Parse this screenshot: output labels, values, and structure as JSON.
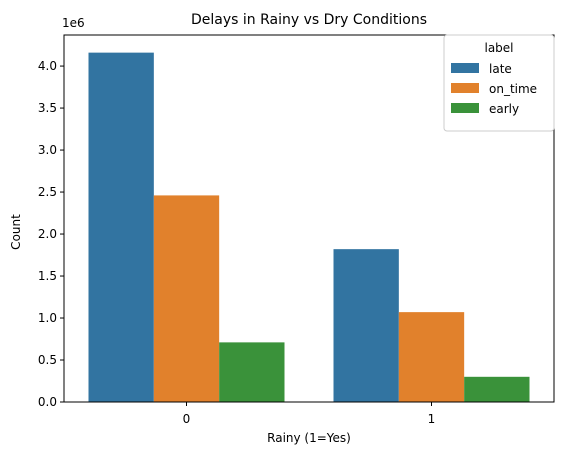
{
  "chart_data": {
    "type": "bar",
    "title": "Delays in Rainy vs Dry Conditions",
    "xlabel": "Rainy (1=Yes)",
    "ylabel": "Count",
    "offset_label": "1e6",
    "categories": [
      "0",
      "1"
    ],
    "ylim": [
      0,
      4.37
    ],
    "y_ticks": [
      "0.0",
      "0.5",
      "1.0",
      "1.5",
      "2.0",
      "2.5",
      "3.0",
      "3.5",
      "4.0"
    ],
    "grid": false,
    "legend": {
      "title": "label",
      "placement": "top-right"
    },
    "series": [
      {
        "name": "late",
        "color": "#3274a1",
        "values": [
          4.16,
          1.82
        ]
      },
      {
        "name": "on_time",
        "color": "#e1812c",
        "values": [
          2.46,
          1.07
        ]
      },
      {
        "name": "early",
        "color": "#3a923a",
        "values": [
          0.71,
          0.3
        ]
      }
    ]
  }
}
